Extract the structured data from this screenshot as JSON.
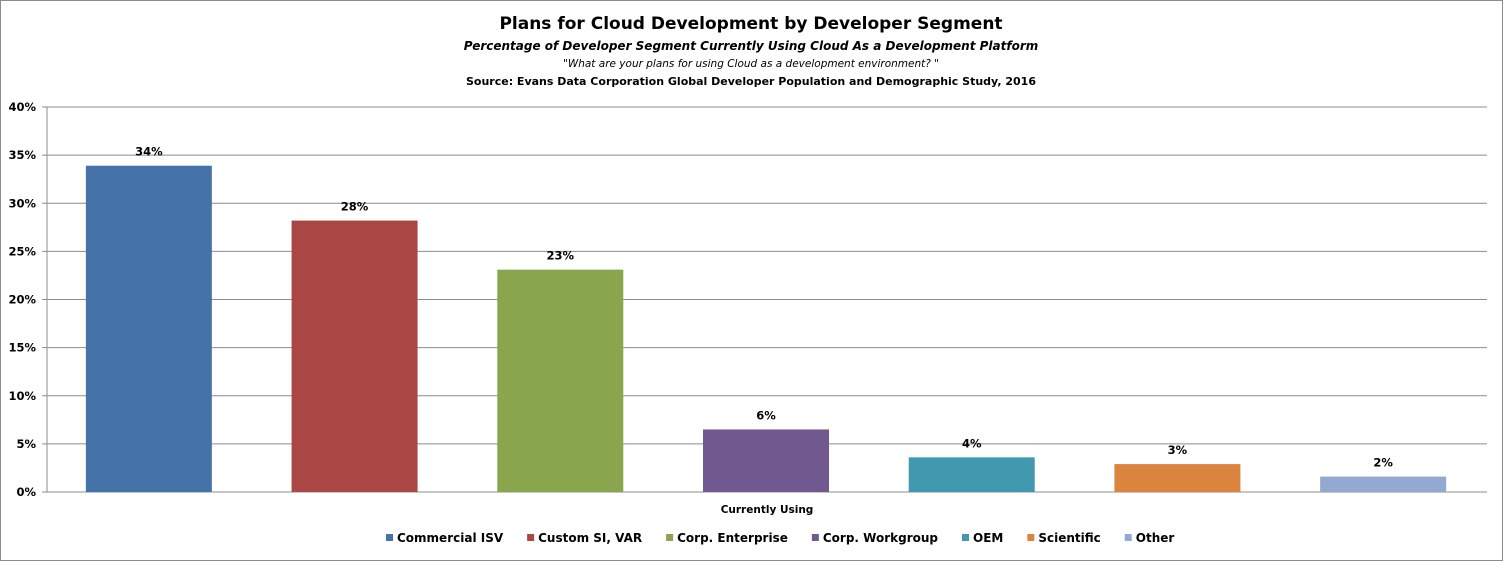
{
  "chart_data": {
    "type": "bar",
    "title": "Plans for Cloud Development by Developer Segment",
    "subtitle": "Percentage  of Developer Segment Currently Using Cloud As a Development Platform",
    "question": "\"What are your plans  for using Cloud as a development  environment? \"",
    "source": "Source: Evans Data Corporation Global Developer Population and Demographic Study, 2016",
    "xlabel": "Currently Using",
    "ylabel": "",
    "ylim": [
      0,
      40
    ],
    "yticks": [
      0,
      5,
      10,
      15,
      20,
      25,
      30,
      35,
      40
    ],
    "ytick_labels": [
      "0%",
      "5%",
      "10%",
      "15%",
      "20%",
      "25%",
      "30%",
      "35%",
      "40%"
    ],
    "grid": true,
    "legend_position": "bottom",
    "series": [
      {
        "name": "Commercial ISV",
        "value": 33.9,
        "label": "34%",
        "color": "#4572a7"
      },
      {
        "name": "Custom SI, VAR",
        "value": 28.2,
        "label": "28%",
        "color": "#aa4643"
      },
      {
        "name": "Corp. Enterprise",
        "value": 23.1,
        "label": "23%",
        "color": "#89a54e"
      },
      {
        "name": "Corp. Workgroup",
        "value": 6.5,
        "label": "6%",
        "color": "#71588f"
      },
      {
        "name": "OEM",
        "value": 3.6,
        "label": "4%",
        "color": "#4198af"
      },
      {
        "name": "Scientific",
        "value": 2.9,
        "label": "3%",
        "color": "#db843d"
      },
      {
        "name": "Other",
        "value": 1.6,
        "label": "2%",
        "color": "#93a9cf"
      }
    ]
  }
}
